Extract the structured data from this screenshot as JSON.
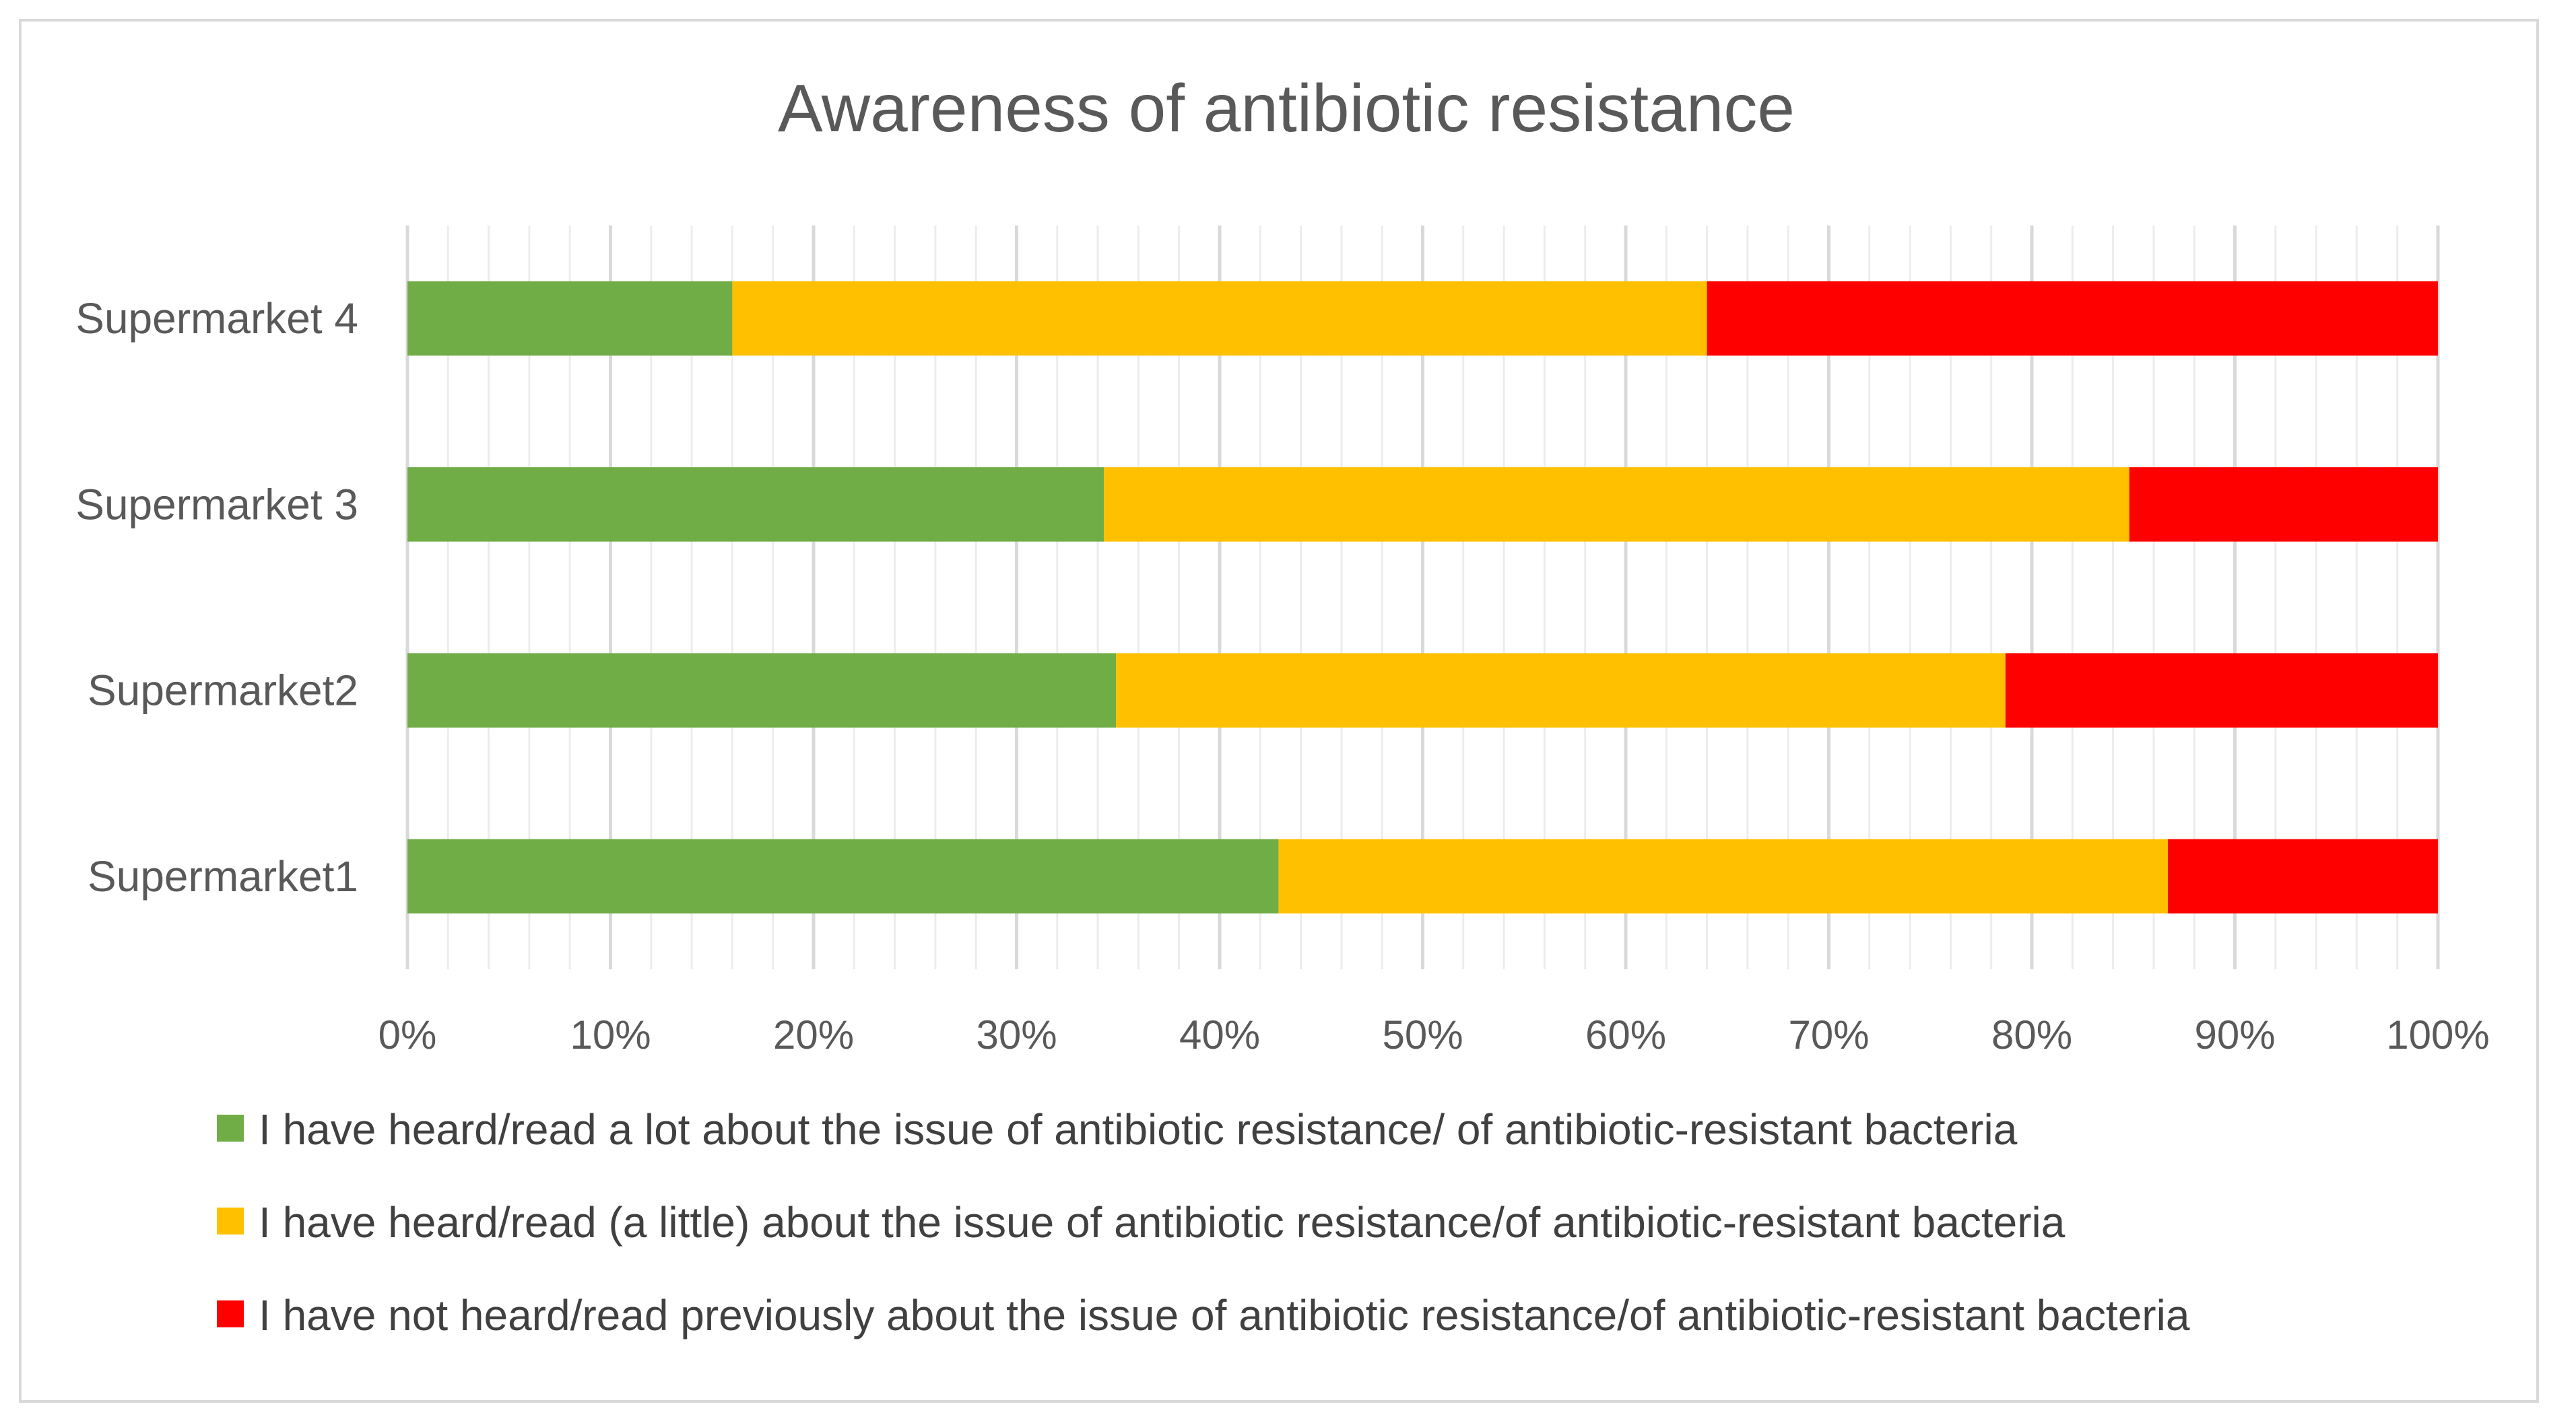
{
  "chart_data": {
    "type": "bar",
    "orientation": "horizontal",
    "stacked": "percent",
    "title": "Awareness of antibiotic resistance",
    "categories": [
      "Supermarket 4",
      "Supermarket 3",
      "Supermarket2",
      "Supermarket1"
    ],
    "series": [
      {
        "name": "I have heard/read a lot about the issue of antibiotic resistance/ of antibiotic-resistant bacteria",
        "color": "#70ad47",
        "values": [
          16,
          34.3,
          34.9,
          42.9
        ]
      },
      {
        "name": "I have heard/read (a little) about the issue of antibiotic resistance/of antibiotic-resistant bacteria",
        "color": "#ffc000",
        "values": [
          48,
          50.5,
          43.8,
          43.8
        ]
      },
      {
        "name": "I have not heard/read previously about the issue of antibiotic resistance/of antibiotic-resistant bacteria",
        "color": "#ff0000",
        "values": [
          36,
          15.2,
          21.3,
          13.3
        ]
      }
    ],
    "xlim": [
      0,
      100
    ],
    "xticks": [
      "0%",
      "10%",
      "20%",
      "30%",
      "40%",
      "50%",
      "60%",
      "70%",
      "80%",
      "90%",
      "100%"
    ],
    "grid": "vertical major and minor",
    "legend": "bottom",
    "xlabel": "",
    "ylabel": ""
  }
}
